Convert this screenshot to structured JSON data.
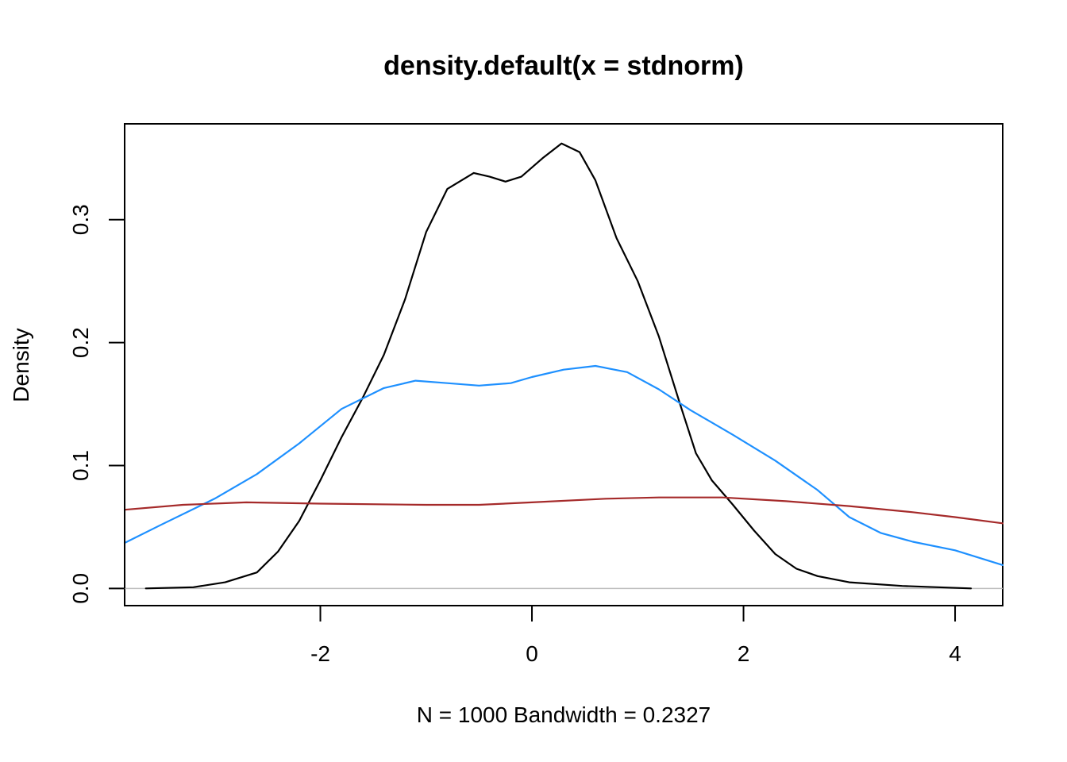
{
  "chart_data": {
    "type": "line",
    "title": "density.default(x = stdnorm)",
    "xlabel": "N = 1000   Bandwidth = 0.2327",
    "ylabel": "Density",
    "xlim": [
      -3.85,
      4.45
    ],
    "ylim": [
      -0.014,
      0.378
    ],
    "x_ticks": [
      -2,
      0,
      2,
      4
    ],
    "x_tick_labels": [
      "-2",
      "0",
      "2",
      "4"
    ],
    "y_ticks": [
      0.0,
      0.1,
      0.2,
      0.3
    ],
    "y_tick_labels": [
      "0.0",
      "0.1",
      "0.2",
      "0.3"
    ],
    "baseline": {
      "y": 0,
      "color": "#bebebe"
    },
    "grid": false,
    "series": [
      {
        "color": "#000000",
        "points": [
          [
            -3.65,
            0.0
          ],
          [
            -3.2,
            0.001
          ],
          [
            -2.9,
            0.005
          ],
          [
            -2.6,
            0.013
          ],
          [
            -2.4,
            0.03
          ],
          [
            -2.2,
            0.055
          ],
          [
            -2.0,
            0.088
          ],
          [
            -1.8,
            0.123
          ],
          [
            -1.6,
            0.155
          ],
          [
            -1.4,
            0.19
          ],
          [
            -1.2,
            0.235
          ],
          [
            -1.0,
            0.29
          ],
          [
            -0.8,
            0.325
          ],
          [
            -0.55,
            0.338
          ],
          [
            -0.4,
            0.335
          ],
          [
            -0.25,
            0.331
          ],
          [
            -0.1,
            0.335
          ],
          [
            0.1,
            0.35
          ],
          [
            0.28,
            0.362
          ],
          [
            0.45,
            0.355
          ],
          [
            0.6,
            0.332
          ],
          [
            0.8,
            0.285
          ],
          [
            1.0,
            0.25
          ],
          [
            1.2,
            0.205
          ],
          [
            1.4,
            0.15
          ],
          [
            1.55,
            0.11
          ],
          [
            1.7,
            0.088
          ],
          [
            1.9,
            0.068
          ],
          [
            2.1,
            0.047
          ],
          [
            2.3,
            0.028
          ],
          [
            2.5,
            0.016
          ],
          [
            2.7,
            0.01
          ],
          [
            3.0,
            0.005
          ],
          [
            3.5,
            0.002
          ],
          [
            4.15,
            0.0
          ]
        ]
      },
      {
        "color": "#1e90ff",
        "points": [
          [
            -3.85,
            0.037
          ],
          [
            -3.5,
            0.052
          ],
          [
            -3.0,
            0.073
          ],
          [
            -2.6,
            0.093
          ],
          [
            -2.2,
            0.118
          ],
          [
            -1.8,
            0.146
          ],
          [
            -1.4,
            0.163
          ],
          [
            -1.1,
            0.169
          ],
          [
            -0.8,
            0.167
          ],
          [
            -0.5,
            0.165
          ],
          [
            -0.2,
            0.167
          ],
          [
            0.0,
            0.172
          ],
          [
            0.3,
            0.178
          ],
          [
            0.6,
            0.181
          ],
          [
            0.9,
            0.176
          ],
          [
            1.2,
            0.162
          ],
          [
            1.5,
            0.145
          ],
          [
            1.9,
            0.125
          ],
          [
            2.3,
            0.104
          ],
          [
            2.7,
            0.08
          ],
          [
            3.0,
            0.058
          ],
          [
            3.3,
            0.045
          ],
          [
            3.6,
            0.038
          ],
          [
            4.0,
            0.031
          ],
          [
            4.45,
            0.019
          ]
        ]
      },
      {
        "color": "#a52a2a",
        "points": [
          [
            -3.85,
            0.064
          ],
          [
            -3.3,
            0.068
          ],
          [
            -2.7,
            0.07
          ],
          [
            -2.0,
            0.069
          ],
          [
            -1.0,
            0.068
          ],
          [
            -0.5,
            0.068
          ],
          [
            0.0,
            0.07
          ],
          [
            0.7,
            0.073
          ],
          [
            1.2,
            0.074
          ],
          [
            1.8,
            0.074
          ],
          [
            2.4,
            0.071
          ],
          [
            3.0,
            0.067
          ],
          [
            3.6,
            0.062
          ],
          [
            4.0,
            0.058
          ],
          [
            4.45,
            0.053
          ]
        ]
      }
    ]
  }
}
